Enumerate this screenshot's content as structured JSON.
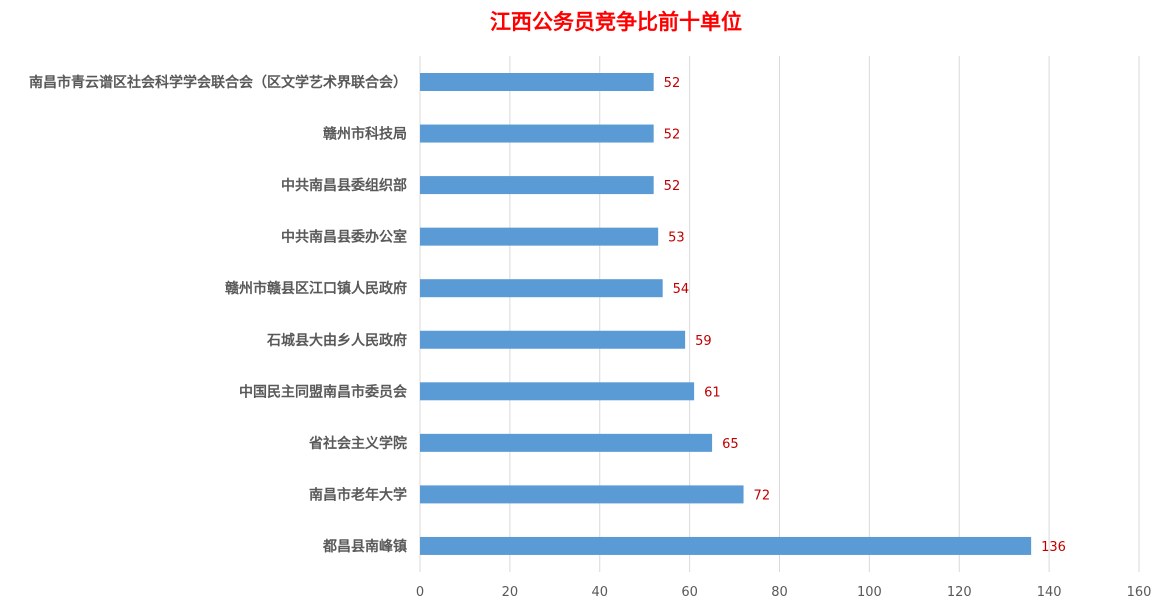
{
  "chart_data": {
    "type": "bar",
    "orientation": "horizontal",
    "title": "江西公务员竞争比前十单位",
    "xlabel": "",
    "ylabel": "",
    "categories": [
      "南昌市青云谱区社会科学学会联合会（区文学艺术界联合会）",
      "赣州市科技局",
      "中共南昌县委组织部",
      "中共南昌县委办公室",
      "赣州市赣县区江口镇人民政府",
      "石城县大由乡人民政府",
      "中国民主同盟南昌市委员会",
      "省社会主义学院",
      "南昌市老年大学",
      "都昌县南峰镇"
    ],
    "values": [
      52,
      52,
      52,
      53,
      54,
      59,
      61,
      65,
      72,
      136
    ],
    "xlim": [
      0,
      160
    ],
    "xticks": [
      0,
      20,
      40,
      60,
      80,
      100,
      120,
      140,
      160
    ],
    "grid": true,
    "legend": "none",
    "colors": {
      "bar": "#5b9bd5",
      "title": "#ff0000",
      "data_label": "#c00000",
      "category_label": "#595959",
      "tick_label": "#595959",
      "grid": "#d9d9d9"
    }
  }
}
